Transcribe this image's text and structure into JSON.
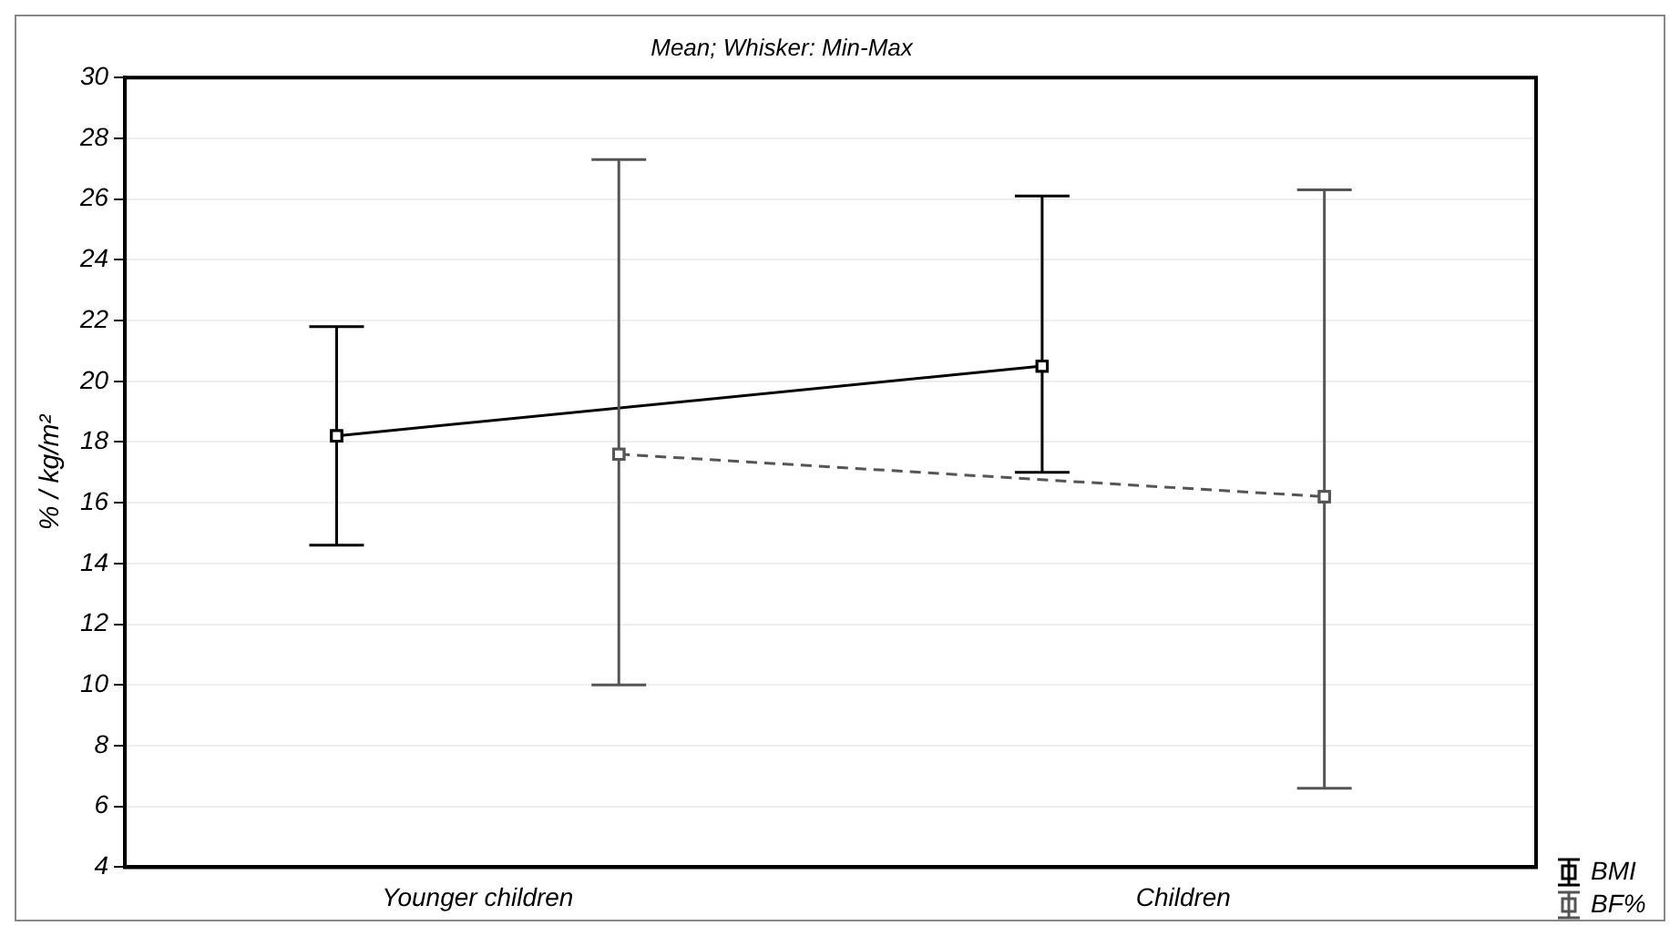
{
  "chart_data": {
    "type": "line",
    "title": "Mean; Whisker: Min-Max",
    "ylabel": "% / kg/m²",
    "categories": [
      "Younger children",
      "Children"
    ],
    "series": [
      {
        "name": "BMI",
        "color": "#000000",
        "values": [
          18.2,
          20.5
        ],
        "errors": [
          [
            14.6,
            21.8
          ],
          [
            17.0,
            26.1
          ]
        ],
        "line_style": "solid"
      },
      {
        "name": "BF%",
        "color": "#555555",
        "values": [
          17.6,
          16.2
        ],
        "errors": [
          [
            10.0,
            27.3
          ],
          [
            6.6,
            26.3
          ]
        ],
        "line_style": "dashed"
      }
    ],
    "ylim": [
      4,
      30
    ],
    "yticks": [
      4,
      6,
      8,
      10,
      12,
      14,
      16,
      18,
      20,
      22,
      24,
      26,
      28,
      30
    ],
    "grid": "y",
    "marker": "square",
    "legend": "bottom right"
  }
}
